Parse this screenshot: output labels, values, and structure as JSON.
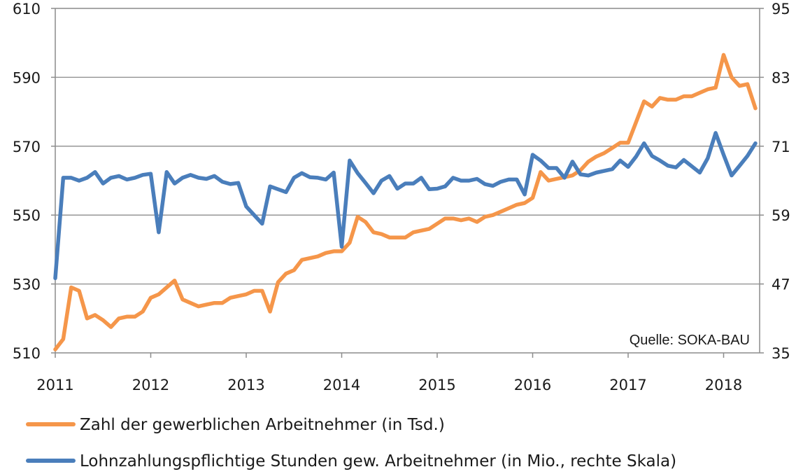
{
  "chart_data": {
    "type": "line",
    "x_ticks": [
      "2011",
      "2012",
      "2013",
      "2014",
      "2015",
      "2016",
      "2017",
      "2018"
    ],
    "y_left": {
      "ticks": [
        "610",
        "590",
        "570",
        "550",
        "530",
        "510"
      ],
      "range": [
        510,
        610
      ]
    },
    "y_right": {
      "ticks": [
        "95",
        "83",
        "71",
        "59",
        "47",
        "35"
      ],
      "range": [
        35,
        95
      ]
    },
    "grid": "horizontal",
    "source": "Quelle: SOKA-BAU",
    "legend_position": "bottom",
    "series": [
      {
        "name": "Zahl der gewerblichen Arbeitnehmer (in Tsd.)",
        "axis": "left",
        "color": "#F5964A",
        "x": [
          "2011-01",
          "2011-02",
          "2011-03",
          "2011-04",
          "2011-05",
          "2011-06",
          "2011-07",
          "2011-08",
          "2011-09",
          "2011-10",
          "2011-11",
          "2011-12",
          "2012-01",
          "2012-02",
          "2012-03",
          "2012-04",
          "2012-05",
          "2012-06",
          "2012-07",
          "2012-08",
          "2012-09",
          "2012-10",
          "2012-11",
          "2012-12",
          "2013-01",
          "2013-02",
          "2013-03",
          "2013-04",
          "2013-05",
          "2013-06",
          "2013-07",
          "2013-08",
          "2013-09",
          "2013-10",
          "2013-11",
          "2013-12",
          "2014-01",
          "2014-02",
          "2014-03",
          "2014-04",
          "2014-05",
          "2014-06",
          "2014-07",
          "2014-08",
          "2014-09",
          "2014-10",
          "2014-11",
          "2014-12",
          "2015-01",
          "2015-02",
          "2015-03",
          "2015-04",
          "2015-05",
          "2015-06",
          "2015-07",
          "2015-08",
          "2015-09",
          "2015-10",
          "2015-11",
          "2015-12",
          "2016-01",
          "2016-02",
          "2016-03",
          "2016-04",
          "2016-05",
          "2016-06",
          "2016-07",
          "2016-08",
          "2016-09",
          "2016-10",
          "2016-11",
          "2016-12",
          "2017-01",
          "2017-02",
          "2017-03",
          "2017-04",
          "2017-05",
          "2017-06",
          "2017-07",
          "2017-08",
          "2017-09",
          "2017-10",
          "2017-11",
          "2017-12",
          "2018-01",
          "2018-02",
          "2018-03",
          "2018-04",
          "2018-05"
        ],
        "values": [
          511,
          514,
          529,
          528,
          520,
          521,
          519.5,
          517.5,
          520,
          520.5,
          520.5,
          522,
          526,
          527,
          529,
          531,
          525.5,
          524.5,
          523.5,
          524,
          524.5,
          524.5,
          526,
          526.5,
          527,
          528,
          528,
          522,
          530.5,
          533,
          534,
          537,
          537.5,
          538,
          539,
          539.5,
          539.5,
          542,
          549.5,
          548,
          545,
          544.5,
          543.5,
          543.5,
          543.5,
          545,
          545.5,
          546,
          547.5,
          549,
          549,
          548.5,
          549,
          548,
          549.5,
          550,
          551,
          552,
          553,
          553.5,
          555,
          562.5,
          560,
          560.5,
          561,
          561.5,
          563,
          565.5,
          567,
          568,
          569.5,
          571,
          571,
          577,
          583,
          581.5,
          584,
          583.5,
          583.5,
          584.5,
          584.5,
          585.5,
          586.5,
          587,
          596.5,
          590,
          587.5,
          588,
          581
        ]
      },
      {
        "name": "Lohnzahlungspflichtige Stunden gew. Arbeitnehmer (in Mio.,  rechte Skala)",
        "axis": "right",
        "color": "#4A7EBB",
        "x": [
          "2011-01",
          "2011-02",
          "2011-03",
          "2011-04",
          "2011-05",
          "2011-06",
          "2011-07",
          "2011-08",
          "2011-09",
          "2011-10",
          "2011-11",
          "2011-12",
          "2012-01",
          "2012-02",
          "2012-03",
          "2012-04",
          "2012-05",
          "2012-06",
          "2012-07",
          "2012-08",
          "2012-09",
          "2012-10",
          "2012-11",
          "2012-12",
          "2013-01",
          "2013-02",
          "2013-03",
          "2013-04",
          "2013-05",
          "2013-06",
          "2013-07",
          "2013-08",
          "2013-09",
          "2013-10",
          "2013-11",
          "2013-12",
          "2014-01",
          "2014-02",
          "2014-03",
          "2014-04",
          "2014-05",
          "2014-06",
          "2014-07",
          "2014-08",
          "2014-09",
          "2014-10",
          "2014-11",
          "2014-12",
          "2015-01",
          "2015-02",
          "2015-03",
          "2015-04",
          "2015-05",
          "2015-06",
          "2015-07",
          "2015-08",
          "2015-09",
          "2015-10",
          "2015-11",
          "2015-12",
          "2016-01",
          "2016-02",
          "2016-03",
          "2016-04",
          "2016-05",
          "2016-06",
          "2016-07",
          "2016-08",
          "2016-09",
          "2016-10",
          "2016-11",
          "2016-12",
          "2017-01",
          "2017-02",
          "2017-03",
          "2017-04",
          "2017-05",
          "2017-06",
          "2017-07",
          "2017-08",
          "2017-09",
          "2017-10",
          "2017-11",
          "2017-12",
          "2018-01",
          "2018-02",
          "2018-03",
          "2018-04",
          "2018-05"
        ],
        "values": [
          48,
          65.5,
          65.5,
          65,
          65.5,
          66.5,
          64.5,
          65.5,
          65.8,
          65.2,
          65.5,
          66,
          66.2,
          56,
          66.5,
          64.5,
          65.5,
          66,
          65.5,
          65.3,
          65.8,
          64.8,
          64.4,
          64.6,
          60.5,
          59,
          57.5,
          64,
          63.5,
          63,
          65.5,
          66.3,
          65.6,
          65.5,
          65.2,
          66.4,
          53.5,
          68.5,
          66.3,
          64.6,
          62.8,
          65,
          65.8,
          63.6,
          64.5,
          64.5,
          65.5,
          63.5,
          63.6,
          64,
          65.5,
          65,
          65,
          65.3,
          64.4,
          64.1,
          64.8,
          65.2,
          65.2,
          62.6,
          69.5,
          68.5,
          67.2,
          67.2,
          65.5,
          68.3,
          66.1,
          65.9,
          66.4,
          66.7,
          67,
          68.5,
          67.4,
          69.2,
          71.5,
          69.3,
          68.5,
          67.6,
          67.3,
          68.6,
          67.5,
          66.4,
          68.9,
          73.3,
          69.5,
          65.9,
          67.6,
          69.3,
          71.5
        ]
      }
    ]
  }
}
